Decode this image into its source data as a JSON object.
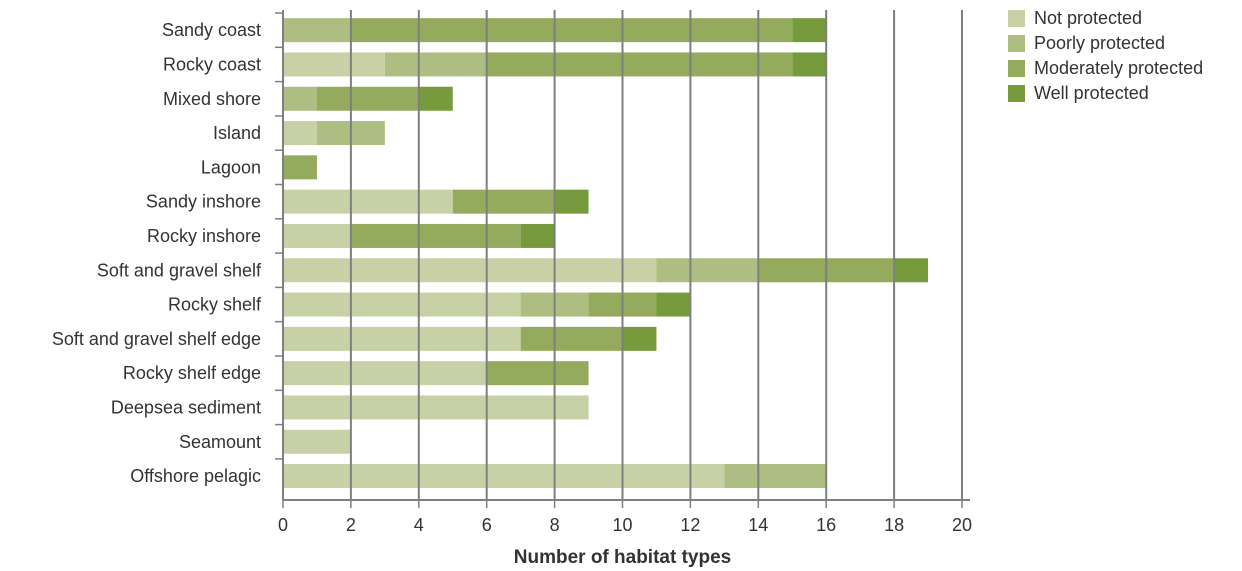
{
  "chart_data": {
    "type": "bar",
    "orientation": "horizontal",
    "stacked": true,
    "title": "",
    "xlabel": "Number of habitat types",
    "ylabel": "",
    "xlim": [
      0,
      20
    ],
    "xticks": [
      0,
      2,
      4,
      6,
      8,
      10,
      12,
      14,
      16,
      18,
      20
    ],
    "grid": "vertical",
    "legend_position": "top-right",
    "categories": [
      "Sandy coast",
      "Rocky coast",
      "Mixed shore",
      "Island",
      "Lagoon",
      "Sandy inshore",
      "Rocky inshore",
      "Soft and gravel shelf",
      "Rocky shelf",
      "Soft and gravel shelf edge",
      "Rocky shelf edge",
      "Deepsea sediment",
      "Seamount",
      "Offshore pelagic"
    ],
    "series": [
      {
        "name": "Not protected",
        "color": "#c8d1a6",
        "values": [
          0,
          3,
          0,
          1,
          0,
          5,
          2,
          11,
          7,
          7,
          6,
          9,
          2,
          13
        ]
      },
      {
        "name": "Poorly protected",
        "color": "#aebd81",
        "values": [
          2,
          3,
          1,
          2,
          0,
          0,
          0,
          3,
          2,
          0,
          0,
          0,
          0,
          3
        ]
      },
      {
        "name": "Moderately protected",
        "color": "#94aa5c",
        "values": [
          13,
          9,
          3,
          0,
          1,
          3,
          5,
          4,
          2,
          3,
          3,
          0,
          0,
          0
        ]
      },
      {
        "name": "Well protected",
        "color": "#779a3c",
        "values": [
          1,
          1,
          1,
          0,
          0,
          1,
          1,
          1,
          1,
          1,
          0,
          0,
          0,
          0
        ]
      }
    ]
  }
}
